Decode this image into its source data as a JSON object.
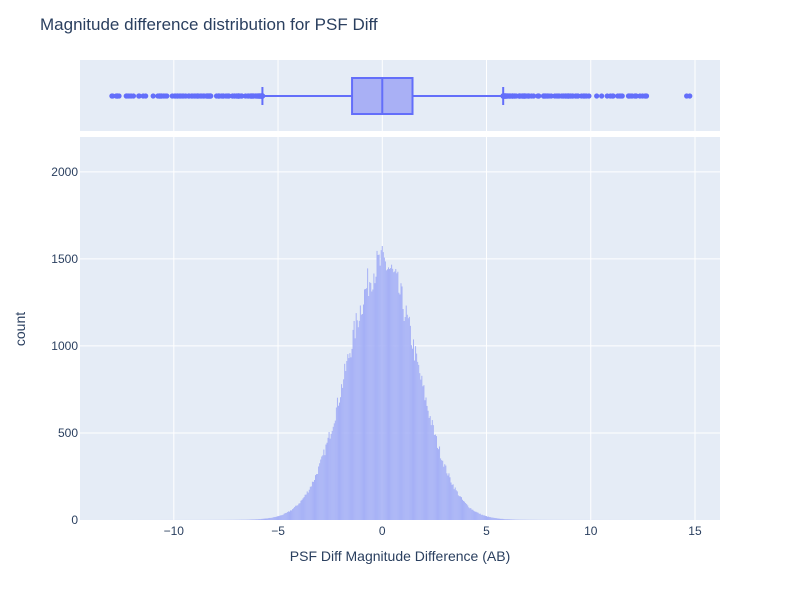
{
  "chart_data": {
    "type": "histogram",
    "title": "Magnitude difference distribution for PSF Diff",
    "xlabel": "PSF Diff Magnitude Difference (AB)",
    "ylabel": "count",
    "xlim": [
      -14.5,
      16.2
    ],
    "ylim": [
      0,
      2200
    ],
    "x_ticks": [
      -10,
      -5,
      0,
      5,
      10,
      15
    ],
    "x_tick_labels": [
      "−10",
      "−5",
      "0",
      "5",
      "10",
      "15"
    ],
    "y_ticks": [
      0,
      500,
      1000,
      1500,
      2000
    ],
    "y_tick_labels": [
      "0",
      "500",
      "1000",
      "1500",
      "2000"
    ],
    "grid": true,
    "histogram": {
      "bin_width": 0.05,
      "range": [
        -13,
        14.8
      ],
      "peak_center": 0.0,
      "peak_count": 1450,
      "sigma": 1.7
    },
    "box_plot": {
      "q1": -1.45,
      "median": 0.0,
      "q3": 1.45,
      "lower_fence": -5.75,
      "upper_fence": 5.8,
      "outlier_range_low": [
        -13.0,
        -5.75
      ],
      "outlier_range_high": [
        5.8,
        13.1
      ],
      "extreme_outliers": [
        14.6,
        14.75
      ]
    },
    "colors": {
      "bar_fill": "#a3aef6",
      "box_line": "#636efa",
      "box_fill": "#a9b0f5",
      "plot_bg": "#e5ecf6",
      "grid": "#ffffff",
      "text": "#2a3f5f"
    }
  }
}
